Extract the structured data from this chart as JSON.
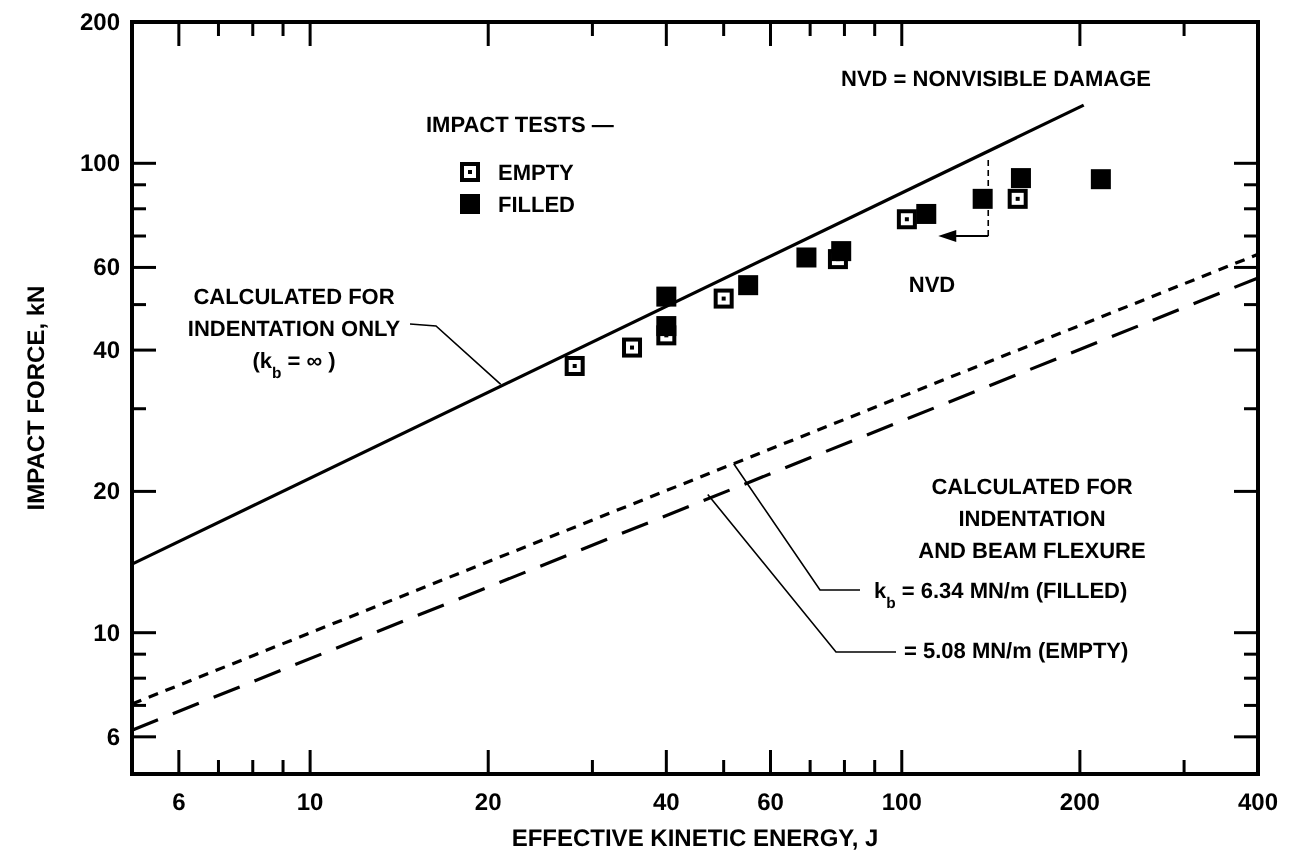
{
  "chart_data": {
    "type": "scatter",
    "xlabel": "EFFECTIVE KINETIC ENERGY, J",
    "ylabel": "IMPACT FORCE, kN",
    "log": "xy",
    "xlim": [
      5,
      400
    ],
    "ylim": [
      5,
      200
    ],
    "xticks": [
      6,
      {
        "value": 7,
        "label": null
      },
      {
        "value": 8,
        "label": null
      },
      {
        "value": 9,
        "label": null
      },
      10,
      20,
      {
        "value": 30,
        "label": null
      },
      40,
      {
        "value": 50,
        "label": null
      },
      60,
      {
        "value": 70,
        "label": null
      },
      {
        "value": 80,
        "label": null
      },
      {
        "value": 90,
        "label": null
      },
      100,
      200,
      {
        "value": 300,
        "label": null
      },
      400
    ],
    "yticks": [
      6,
      {
        "value": 7,
        "label": null
      },
      {
        "value": 8,
        "label": null
      },
      {
        "value": 9,
        "label": null
      },
      10,
      20,
      {
        "value": 30,
        "label": null
      },
      40,
      {
        "value": 50,
        "label": null
      },
      60,
      {
        "value": 70,
        "label": null
      },
      {
        "value": 80,
        "label": null
      },
      {
        "value": 90,
        "label": null
      },
      100,
      200
    ],
    "legend": "top left",
    "legend_title": "IMPACT TESTS —",
    "series": [
      {
        "name": "EMPTY",
        "color": "#000000",
        "marker": "square",
        "x": [
          28,
          35,
          40,
          50,
          78,
          102,
          157
        ],
        "values": [
          37,
          40.5,
          43,
          51.5,
          62.5,
          76,
          84
        ]
      },
      {
        "name": "FILLED",
        "color": "#000000",
        "marker": "square",
        "x": [
          40,
          40,
          55,
          69,
          79,
          110,
          137,
          159,
          217
        ],
        "values": [
          52,
          45,
          55,
          63,
          65,
          78,
          84,
          93,
          92.5
        ]
      },
      {
        "type": "line",
        "color": "#000000",
        "line_style": "solid",
        "x": [
          5,
          203
        ],
        "values": [
          14,
          133
        ]
      },
      {
        "type": "line",
        "color": "#000000",
        "line_style": "dotted",
        "x": [
          5,
          400
        ],
        "values": [
          7.05,
          64
        ]
      },
      {
        "type": "line",
        "color": "#000000",
        "line_style": "dashed",
        "x": [
          5,
          400
        ],
        "values": [
          6.2,
          57
        ]
      }
    ],
    "annotations": [
      "NVD = NONVISIBLE DAMAGE",
      {
        "text": "CALCULATED FOR\nINDENTATION ONLY\n(k$_{b}$ = ∞ )",
        "x": 21,
        "y": 33.8
      },
      "NVD",
      "CALCULATED FOR\nINDENTATION\nAND BEAM FLEXURE",
      {
        "text": "k$_{b}$ = 6.34 MN/m (FILLED)",
        "x": 52,
        "y": 22.9
      },
      {
        "text": "= 5.08 MN/m (EMPTY)",
        "x": 47,
        "y": 19.7
      }
    ]
  }
}
